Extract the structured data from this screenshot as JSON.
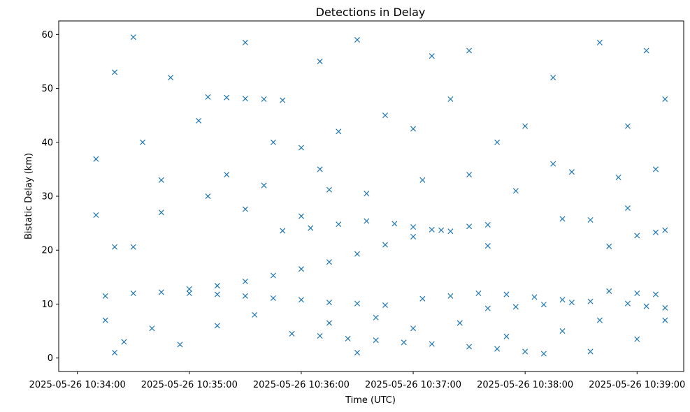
{
  "chart_data": {
    "type": "scatter",
    "title": "Detections in Delay",
    "xlabel": "Time (UTC)",
    "ylabel": "Bistatic Delay (km)",
    "xlim": [
      "2025-05-26 10:33:50",
      "2025-05-26 10:39:25"
    ],
    "ylim": [
      -2.5,
      62.5
    ],
    "x_ticks": [
      "2025-05-26 10:34:00",
      "2025-05-26 10:35:00",
      "2025-05-26 10:36:00",
      "2025-05-26 10:37:00",
      "2025-05-26 10:38:00",
      "2025-05-26 10:39:00"
    ],
    "y_ticks": [
      0,
      10,
      20,
      30,
      40,
      50,
      60
    ],
    "grid": false,
    "marker": "x",
    "color": "#1f77b4",
    "series": [
      {
        "values": [
          [
            "10:34:15",
            11.5
          ],
          [
            "10:34:30",
            12.0
          ],
          [
            "10:34:45",
            12.2
          ],
          [
            "10:35:00",
            12.8
          ],
          [
            "10:35:15",
            13.4
          ],
          [
            "10:35:30",
            14.2
          ],
          [
            "10:35:45",
            15.3
          ],
          [
            "10:36:00",
            16.5
          ],
          [
            "10:36:15",
            17.8
          ],
          [
            "10:36:30",
            19.3
          ],
          [
            "10:36:45",
            21.0
          ],
          [
            "10:37:00",
            22.5
          ],
          [
            "10:37:15",
            23.7
          ],
          [
            "10:37:30",
            24.4
          ],
          [
            "10:37:40",
            24.7
          ],
          [
            "10:35:50",
            23.6
          ],
          [
            "10:36:05",
            24.1
          ],
          [
            "10:36:20",
            24.8
          ],
          [
            "10:36:35",
            25.4
          ],
          [
            "10:36:50",
            24.9
          ],
          [
            "10:37:00",
            24.3
          ],
          [
            "10:37:10",
            23.8
          ],
          [
            "10:37:20",
            23.5
          ],
          [
            "10:35:10",
            48.4
          ],
          [
            "10:35:20",
            48.3
          ],
          [
            "10:35:30",
            48.1
          ],
          [
            "10:35:40",
            48.0
          ],
          [
            "10:35:50",
            47.8
          ],
          [
            "10:35:00",
            12.0
          ],
          [
            "10:35:15",
            11.8
          ],
          [
            "10:35:30",
            11.5
          ],
          [
            "10:35:45",
            11.1
          ],
          [
            "10:36:00",
            10.8
          ],
          [
            "10:36:15",
            10.3
          ],
          [
            "10:36:30",
            10.1
          ],
          [
            "10:36:45",
            9.8
          ],
          [
            "10:36:10",
            4.1
          ],
          [
            "10:36:25",
            3.6
          ],
          [
            "10:36:40",
            3.3
          ],
          [
            "10:36:55",
            2.9
          ],
          [
            "10:37:10",
            2.6
          ],
          [
            "10:37:30",
            2.1
          ],
          [
            "10:37:45",
            1.7
          ],
          [
            "10:38:00",
            1.2
          ],
          [
            "10:38:10",
            0.8
          ],
          [
            "10:37:05",
            11.0
          ],
          [
            "10:37:20",
            11.5
          ],
          [
            "10:37:35",
            12.0
          ],
          [
            "10:37:50",
            11.8
          ],
          [
            "10:38:05",
            11.3
          ],
          [
            "10:38:20",
            10.8
          ],
          [
            "10:38:35",
            10.5
          ],
          [
            "10:37:40",
            9.2
          ],
          [
            "10:37:55",
            9.5
          ],
          [
            "10:38:10",
            9.9
          ],
          [
            "10:38:25",
            10.3
          ],
          [
            "10:38:45",
            12.4
          ],
          [
            "10:39:00",
            12.0
          ],
          [
            "10:39:10",
            11.8
          ],
          [
            "10:38:55",
            10.1
          ],
          [
            "10:39:05",
            9.6
          ],
          [
            "10:39:15",
            9.3
          ],
          [
            "10:39:00",
            22.7
          ],
          [
            "10:39:10",
            23.3
          ],
          [
            "10:39:15",
            23.7
          ],
          [
            "10:34:10",
            26.5
          ],
          [
            "10:34:20",
            20.6
          ],
          [
            "10:34:30",
            20.6
          ],
          [
            "10:34:45",
            27.0
          ],
          [
            "10:35:30",
            27.6
          ],
          [
            "10:36:00",
            26.3
          ],
          [
            "10:36:15",
            31.2
          ],
          [
            "10:38:20",
            25.8
          ],
          [
            "10:38:35",
            25.6
          ],
          [
            "10:38:45",
            20.7
          ],
          [
            "10:38:55",
            27.8
          ],
          [
            "10:37:40",
            20.8
          ],
          [
            "10:34:10",
            36.9
          ],
          [
            "10:34:20",
            53.0
          ],
          [
            "10:34:30",
            59.5
          ],
          [
            "10:34:35",
            40.0
          ],
          [
            "10:34:50",
            52.0
          ],
          [
            "10:35:05",
            44.0
          ],
          [
            "10:35:20",
            34.0
          ],
          [
            "10:35:30",
            58.5
          ],
          [
            "10:35:45",
            40.0
          ],
          [
            "10:36:00",
            39.0
          ],
          [
            "10:36:10",
            55.0
          ],
          [
            "10:36:20",
            42.0
          ],
          [
            "10:36:30",
            59.0
          ],
          [
            "10:36:45",
            45.0
          ],
          [
            "10:37:00",
            42.5
          ],
          [
            "10:37:10",
            56.0
          ],
          [
            "10:37:20",
            48.0
          ],
          [
            "10:37:30",
            57.0
          ],
          [
            "10:37:45",
            40.0
          ],
          [
            "10:38:00",
            43.0
          ],
          [
            "10:38:15",
            52.0
          ],
          [
            "10:38:25",
            34.5
          ],
          [
            "10:38:40",
            58.5
          ],
          [
            "10:38:55",
            43.0
          ],
          [
            "10:39:05",
            57.0
          ],
          [
            "10:39:15",
            48.0
          ],
          [
            "10:34:15",
            7.0
          ],
          [
            "10:34:25",
            3.0
          ],
          [
            "10:34:40",
            5.5
          ],
          [
            "10:34:55",
            2.5
          ],
          [
            "10:35:15",
            6.0
          ],
          [
            "10:35:35",
            8.0
          ],
          [
            "10:35:55",
            4.5
          ],
          [
            "10:36:15",
            6.5
          ],
          [
            "10:36:40",
            7.5
          ],
          [
            "10:37:00",
            5.5
          ],
          [
            "10:37:25",
            6.5
          ],
          [
            "10:37:50",
            4.0
          ],
          [
            "10:38:20",
            5.0
          ],
          [
            "10:38:40",
            7.0
          ],
          [
            "10:39:00",
            3.5
          ],
          [
            "10:39:15",
            7.0
          ],
          [
            "10:34:20",
            1.0
          ],
          [
            "10:36:30",
            1.0
          ],
          [
            "10:38:35",
            1.2
          ],
          [
            "10:34:45",
            33.0
          ],
          [
            "10:35:10",
            30.0
          ],
          [
            "10:35:40",
            32.0
          ],
          [
            "10:36:10",
            35.0
          ],
          [
            "10:36:35",
            30.5
          ],
          [
            "10:37:05",
            33.0
          ],
          [
            "10:37:30",
            34.0
          ],
          [
            "10:37:55",
            31.0
          ],
          [
            "10:38:15",
            36.0
          ],
          [
            "10:38:50",
            33.5
          ],
          [
            "10:39:10",
            35.0
          ]
        ]
      }
    ]
  }
}
